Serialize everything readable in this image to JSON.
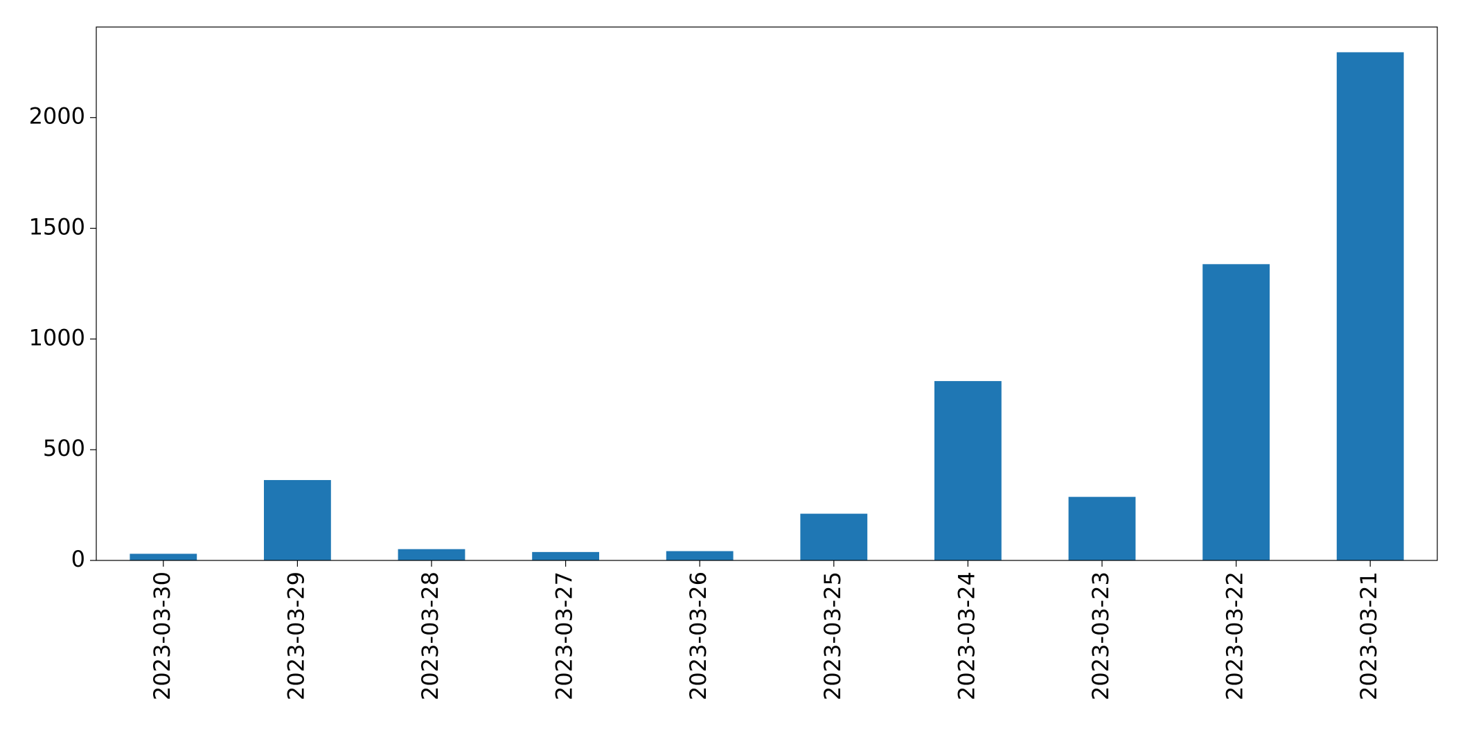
{
  "chart_data": {
    "type": "bar",
    "categories": [
      "2023-03-30",
      "2023-03-29",
      "2023-03-28",
      "2023-03-27",
      "2023-03-26",
      "2023-03-25",
      "2023-03-24",
      "2023-03-23",
      "2023-03-22",
      "2023-03-21"
    ],
    "values": [
      30,
      363,
      51,
      38,
      42,
      211,
      810,
      287,
      1338,
      2295
    ],
    "color": "#1f77b4",
    "ylim": [
      0,
      2409
    ],
    "yticks": [
      0,
      500,
      1000,
      1500,
      2000
    ],
    "grid": false
  }
}
